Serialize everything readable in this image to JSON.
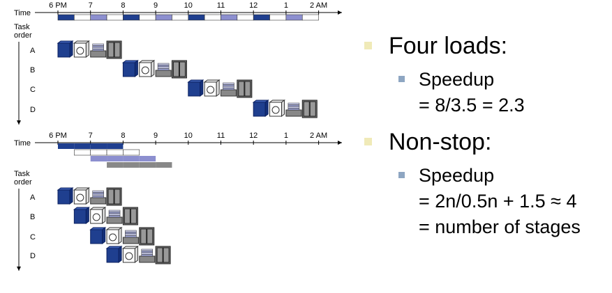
{
  "top_diagram": {
    "time_label": "Time",
    "times": [
      "6 PM",
      "7",
      "8",
      "9",
      "10",
      "11",
      "12",
      "1",
      "2 AM"
    ],
    "task_order_label": [
      "Task",
      "order"
    ],
    "tasks": [
      "A",
      "B",
      "C",
      "D"
    ]
  },
  "bottom_diagram": {
    "time_label": "Time",
    "times": [
      "6 PM",
      "7",
      "8",
      "9",
      "10",
      "11",
      "12",
      "1",
      "2 AM"
    ],
    "task_order_label": [
      "Task",
      "order"
    ],
    "tasks": [
      "A",
      "B",
      "C",
      "D"
    ]
  },
  "bullets": [
    {
      "text": "Four loads:",
      "sub": [
        "Speedup",
        "= 8/3.5 = 2.3"
      ]
    },
    {
      "text": "Non-stop:",
      "sub": [
        "Speedup",
        "= 2n/0.5n + 1.5 ≈ 4",
        "= number of stages"
      ]
    }
  ]
}
